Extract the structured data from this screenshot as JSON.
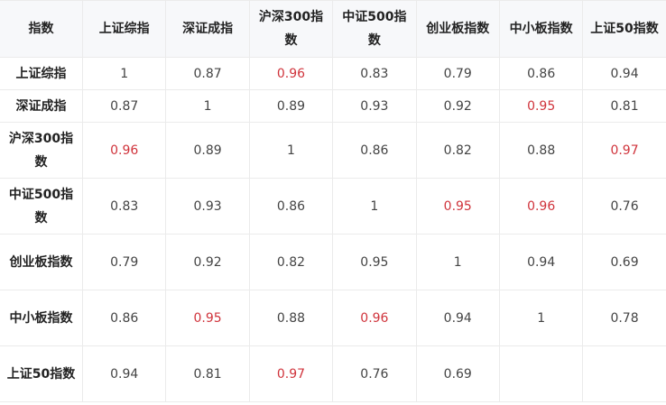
{
  "table": {
    "corner": "指数",
    "columns": [
      "上证综指",
      "深证成指",
      "沪深300指数",
      "中证500指数",
      "创业板指数",
      "中小板指数",
      "上证50指数"
    ],
    "highlight_color": "#d0343c",
    "rows": [
      {
        "label": "上证综指",
        "cells": [
          {
            "value": "1",
            "highlight": false
          },
          {
            "value": "0.87",
            "highlight": false
          },
          {
            "value": "0.96",
            "highlight": true
          },
          {
            "value": "0.83",
            "highlight": false
          },
          {
            "value": "0.79",
            "highlight": false
          },
          {
            "value": "0.86",
            "highlight": false
          },
          {
            "value": "0.94",
            "highlight": false
          }
        ]
      },
      {
        "label": "深证成指",
        "cells": [
          {
            "value": "0.87",
            "highlight": false
          },
          {
            "value": "1",
            "highlight": false
          },
          {
            "value": "0.89",
            "highlight": false
          },
          {
            "value": "0.93",
            "highlight": false
          },
          {
            "value": "0.92",
            "highlight": false
          },
          {
            "value": "0.95",
            "highlight": true
          },
          {
            "value": "0.81",
            "highlight": false
          }
        ]
      },
      {
        "label": "沪深300指数",
        "cells": [
          {
            "value": "0.96",
            "highlight": true
          },
          {
            "value": "0.89",
            "highlight": false
          },
          {
            "value": "1",
            "highlight": false
          },
          {
            "value": "0.86",
            "highlight": false
          },
          {
            "value": "0.82",
            "highlight": false
          },
          {
            "value": "0.88",
            "highlight": false
          },
          {
            "value": "0.97",
            "highlight": true
          }
        ]
      },
      {
        "label": "中证500指数",
        "cells": [
          {
            "value": "0.83",
            "highlight": false
          },
          {
            "value": "0.93",
            "highlight": false
          },
          {
            "value": "0.86",
            "highlight": false
          },
          {
            "value": "1",
            "highlight": false
          },
          {
            "value": "0.95",
            "highlight": true
          },
          {
            "value": "0.96",
            "highlight": true
          },
          {
            "value": "0.76",
            "highlight": false
          }
        ]
      },
      {
        "label": "创业板指数",
        "cells": [
          {
            "value": "0.79",
            "highlight": false
          },
          {
            "value": "0.92",
            "highlight": false
          },
          {
            "value": "0.82",
            "highlight": false
          },
          {
            "value": "0.95",
            "highlight": false
          },
          {
            "value": "1",
            "highlight": false
          },
          {
            "value": "0.94",
            "highlight": false
          },
          {
            "value": "0.69",
            "highlight": false
          }
        ]
      },
      {
        "label": "中小板指数",
        "cells": [
          {
            "value": "0.86",
            "highlight": false
          },
          {
            "value": "0.95",
            "highlight": true
          },
          {
            "value": "0.88",
            "highlight": false
          },
          {
            "value": "0.96",
            "highlight": true
          },
          {
            "value": "0.94",
            "highlight": false
          },
          {
            "value": "1",
            "highlight": false
          },
          {
            "value": "0.78",
            "highlight": false
          }
        ]
      },
      {
        "label": "上证50指数",
        "cells": [
          {
            "value": "0.94",
            "highlight": false
          },
          {
            "value": "0.81",
            "highlight": false
          },
          {
            "value": "0.97",
            "highlight": true
          },
          {
            "value": "0.76",
            "highlight": false
          },
          {
            "value": "0.69",
            "highlight": false
          },
          {
            "value": "",
            "highlight": false
          },
          {
            "value": "",
            "highlight": false
          }
        ]
      }
    ]
  }
}
